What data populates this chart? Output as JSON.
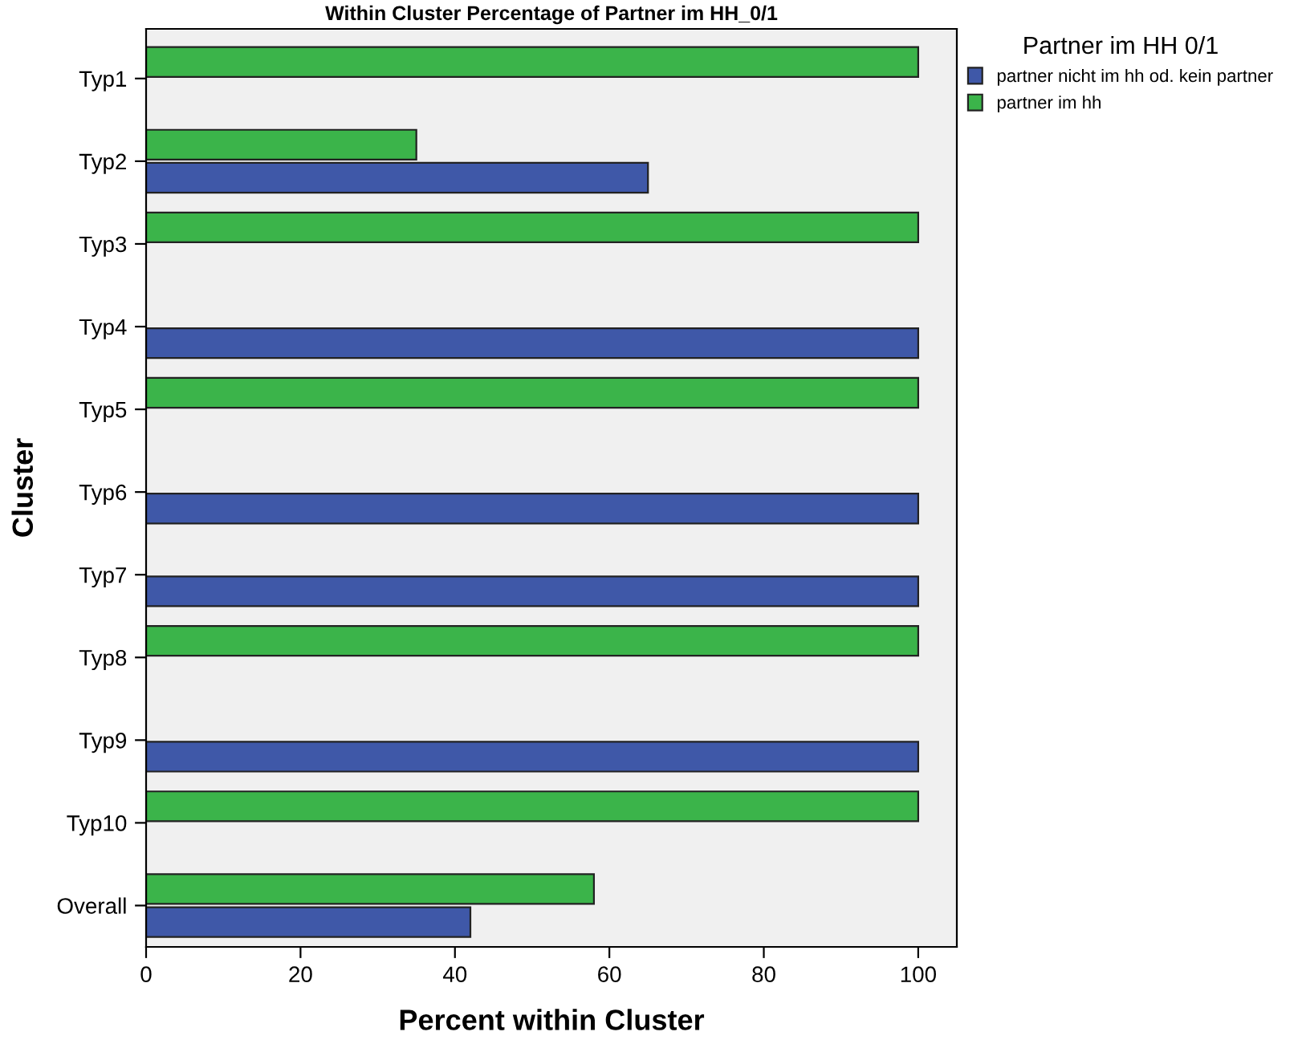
{
  "chart_data": {
    "type": "bar",
    "orientation": "horizontal",
    "title": "Within Cluster Percentage of Partner im HH_0/1",
    "xlabel": "Percent within Cluster",
    "ylabel": "Cluster",
    "legend_title": "Partner im HH 0/1",
    "categories": [
      "Typ1",
      "Typ2",
      "Typ3",
      "Typ4",
      "Typ5",
      "Typ6",
      "Typ7",
      "Typ8",
      "Typ9",
      "Typ10",
      "Overall"
    ],
    "series": [
      {
        "name": "partner nicht im hh od. kein partner",
        "color": "#3f58a8",
        "values": [
          null,
          65,
          null,
          100,
          null,
          100,
          100,
          null,
          100,
          null,
          42
        ]
      },
      {
        "name": "partner im hh",
        "color": "#3bb44a",
        "values": [
          100,
          35,
          100,
          null,
          100,
          null,
          null,
          100,
          null,
          100,
          58
        ]
      }
    ],
    "xlim": [
      0,
      105
    ],
    "xticks": [
      0,
      20,
      40,
      60,
      80,
      100
    ],
    "grid": false,
    "legend": "top right"
  }
}
